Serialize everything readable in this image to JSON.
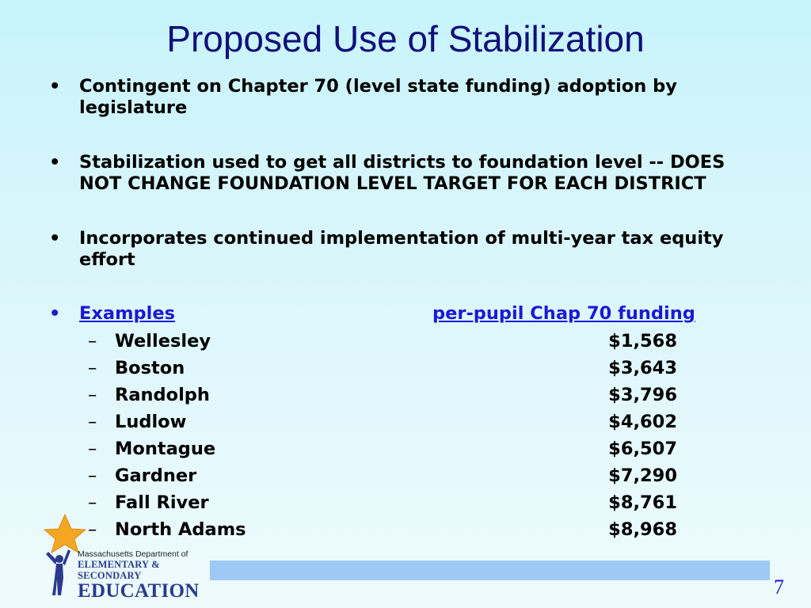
{
  "slide": {
    "title": "Proposed Use of Stabilization",
    "page_number": "7"
  },
  "bullets": [
    {
      "text": "Contingent on Chapter 70 (level state funding) adoption by legislature"
    },
    {
      "text": "Stabilization used to get all districts to foundation level -- DOES NOT CHANGE FOUNDATION LEVEL TARGET FOR EACH DISTRICT"
    },
    {
      "text": "Incorporates continued implementation of multi-year tax equity effort"
    }
  ],
  "examples": {
    "label": "Examples",
    "column_header": "per-pupil Chap 70 funding",
    "rows": [
      {
        "district": "Wellesley",
        "value": "$1,568"
      },
      {
        "district": "Boston",
        "value": "$3,643"
      },
      {
        "district": "Randolph",
        "value": "$3,796"
      },
      {
        "district": "Ludlow",
        "value": "$4,602"
      },
      {
        "district": "Montague",
        "value": "$6,507"
      },
      {
        "district": "Gardner",
        "value": "$7,290"
      },
      {
        "district": "Fall River",
        "value": "$8,761"
      },
      {
        "district": "North Adams",
        "value": "$8,968"
      }
    ]
  },
  "logo": {
    "line1": "Massachusetts Department of",
    "line2": "ELEMENTARY & SECONDARY",
    "line3": "EDUCATION",
    "star_color": "#f5a623",
    "figure_color": "#2b3a8c"
  },
  "colors": {
    "title": "#10107a",
    "link": "#1a1ad6",
    "footer_bar": "#9ec9f6"
  }
}
